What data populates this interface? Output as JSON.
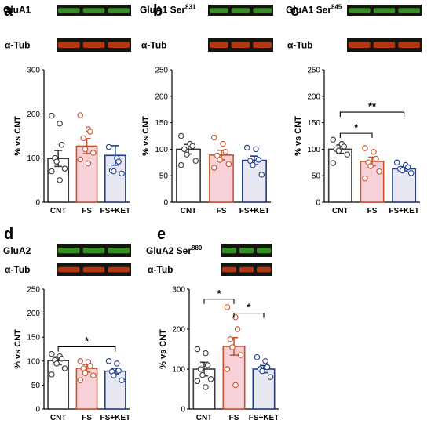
{
  "colors": {
    "cnt": "#3a3a3a",
    "fs": "#c8532b",
    "fs_fill": "#f7d0d8",
    "ket": "#1f3c8c",
    "ket_fill": "#e8e8f2",
    "blot_green": "#3c9a2a",
    "blot_red": "#c43a12",
    "blot_bg": "#151510"
  },
  "chart_data": [
    {
      "panel": "a",
      "type": "bar",
      "blot_labels": [
        "GluA1",
        "α-Tub"
      ],
      "blot_sup": "",
      "categories": [
        "CNT",
        "FS",
        "FS+KET"
      ],
      "values": [
        99,
        127,
        106
      ],
      "errors": [
        18,
        17,
        22
      ],
      "points": [
        [
          196,
          178,
          130,
          100,
          92,
          76,
          70,
          50
        ],
        [
          197,
          165,
          160,
          145,
          120,
          112,
          97,
          88
        ],
        [
          125,
          100,
          92,
          72,
          70,
          65
        ]
      ],
      "ylabel": "% vs CNT",
      "ylim": [
        0,
        300
      ],
      "yticks": [
        0,
        100,
        200,
        300
      ],
      "significance": []
    },
    {
      "panel": "b",
      "type": "bar",
      "blot_labels": [
        "GluA1 Ser",
        "α-Tub"
      ],
      "blot_sup": "831",
      "categories": [
        "CNT",
        "FS",
        "FS+KET"
      ],
      "values": [
        100,
        89,
        79
      ],
      "errors": [
        9,
        9,
        8
      ],
      "points": [
        [
          125,
          110,
          106,
          100,
          90,
          78,
          70
        ],
        [
          122,
          110,
          95,
          88,
          80,
          72,
          65
        ],
        [
          103,
          100,
          80,
          78,
          70,
          52
        ]
      ],
      "ylabel": "% vs CNT",
      "ylim": [
        0,
        250
      ],
      "yticks": [
        0,
        50,
        100,
        150,
        200,
        250
      ],
      "significance": []
    },
    {
      "panel": "c",
      "type": "bar",
      "blot_labels": [
        "GluA1 Ser",
        "α-Tub"
      ],
      "blot_sup": "845",
      "categories": [
        "CNT",
        "FS",
        "FS+KET"
      ],
      "values": [
        100,
        77,
        63
      ],
      "errors": [
        8,
        8,
        4
      ],
      "points": [
        [
          118,
          110,
          105,
          100,
          97,
          90,
          74
        ],
        [
          102,
          95,
          82,
          75,
          68,
          58,
          45
        ],
        [
          75,
          70,
          66,
          63,
          60,
          55
        ]
      ],
      "ylabel": "% vs CNT",
      "ylim": [
        0,
        250
      ],
      "yticks": [
        0,
        50,
        100,
        150,
        200,
        250
      ],
      "significance": [
        {
          "from": 0,
          "to": 1,
          "y": 130,
          "label": "*"
        },
        {
          "from": 0,
          "to": 2,
          "y": 170,
          "label": "**"
        }
      ]
    },
    {
      "panel": "d",
      "type": "bar",
      "blot_labels": [
        "GluA2",
        "α-Tub"
      ],
      "blot_sup": "",
      "categories": [
        "CNT",
        "FS",
        "FS+KET"
      ],
      "values": [
        101,
        85,
        79
      ],
      "errors": [
        8,
        8,
        6
      ],
      "points": [
        [
          115,
          110,
          105,
          102,
          95,
          85,
          72
        ],
        [
          100,
          98,
          90,
          85,
          75,
          70,
          60
        ],
        [
          100,
          95,
          80,
          78,
          70,
          60
        ]
      ],
      "ylabel": "% vs CNT",
      "ylim": [
        0,
        250
      ],
      "yticks": [
        0,
        50,
        100,
        150,
        200,
        250
      ],
      "significance": [
        {
          "from": 0,
          "to": 2,
          "y": 130,
          "label": "*"
        }
      ]
    },
    {
      "panel": "e",
      "type": "bar",
      "blot_labels": [
        "GluA2 Ser",
        "α-Tub"
      ],
      "blot_sup": "880",
      "categories": [
        "CNT",
        "FS",
        "FS+KET"
      ],
      "values": [
        100,
        157,
        100
      ],
      "errors": [
        17,
        22,
        9
      ],
      "points": [
        [
          150,
          140,
          110,
          100,
          85,
          75,
          70,
          55
        ],
        [
          255,
          230,
          200,
          175,
          155,
          135,
          100,
          60
        ],
        [
          130,
          120,
          105,
          100,
          95,
          80
        ]
      ],
      "ylabel": "% vs CNT",
      "ylim": [
        0,
        300
      ],
      "yticks": [
        0,
        100,
        200,
        300
      ],
      "significance": [
        {
          "from": 0,
          "to": 1,
          "y": 275,
          "label": "*"
        },
        {
          "from": 1,
          "to": 2,
          "y": 240,
          "label": "*"
        }
      ]
    }
  ]
}
